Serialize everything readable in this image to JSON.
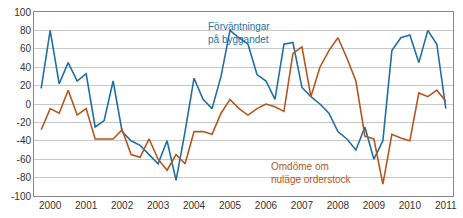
{
  "chart_data": {
    "type": "line",
    "categories": [
      null,
      "2000",
      null,
      null,
      null,
      "2001",
      null,
      null,
      null,
      "2002",
      null,
      null,
      null,
      "2003",
      null,
      null,
      null,
      "2004",
      null,
      null,
      null,
      "2005",
      null,
      null,
      null,
      "2006",
      null,
      null,
      null,
      "2007",
      null,
      null,
      null,
      "2008",
      null,
      null,
      null,
      "2009",
      null,
      null,
      null,
      "2010",
      null,
      null,
      null,
      "2011"
    ],
    "series": [
      {
        "name": "Förväntningar\npå byggandet",
        "color": "#1f6fa5",
        "values": [
          17,
          80,
          22,
          45,
          25,
          33,
          -25,
          -18,
          25,
          -30,
          -40,
          -45,
          -55,
          -65,
          -40,
          -83,
          -30,
          28,
          5,
          -5,
          30,
          80,
          72,
          65,
          32,
          25,
          5,
          65,
          67,
          18,
          8,
          0,
          -10,
          -30,
          -38,
          -50,
          -25,
          -60,
          -40,
          58,
          72,
          75,
          45,
          80,
          65,
          -5
        ]
      },
      {
        "name": "Omdöme om\nnuläge orderstock",
        "color": "#b4561e",
        "values": [
          -28,
          -5,
          -10,
          15,
          -12,
          -5,
          -38,
          -38,
          -38,
          -28,
          -55,
          -58,
          -38,
          -60,
          -72,
          -55,
          -65,
          -30,
          -30,
          -33,
          -10,
          5,
          -5,
          -12,
          -5,
          0,
          -3,
          -8,
          55,
          62,
          8,
          40,
          58,
          72,
          50,
          25,
          -35,
          -38,
          -87,
          -33,
          -37,
          -40,
          12,
          8,
          15,
          3
        ]
      }
    ],
    "ylim": [
      -100,
      100
    ],
    "yticks": [
      -100,
      -80,
      -60,
      -40,
      -20,
      0,
      20,
      40,
      60,
      80,
      100
    ],
    "grid": true
  }
}
